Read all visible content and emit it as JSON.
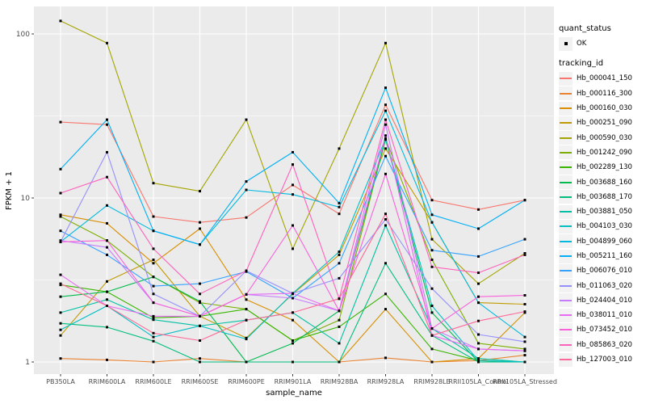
{
  "chart_data": {
    "type": "line",
    "title": "",
    "xlabel": "sample_name",
    "ylabel": "FPKM + 1",
    "y_scale": "log10",
    "ylim": [
      1,
      130
    ],
    "y_ticks": [
      1,
      10,
      100
    ],
    "y_minor_ticks": [
      3.162,
      31.623
    ],
    "grid": true,
    "panel_bg": "#EBEBEB",
    "grid_color": "#FFFFFF",
    "tick_label_color": "#4D4D4D",
    "point_color": "#000000",
    "point_shape": "filled-square",
    "legend_position": "right",
    "categories": [
      "PB350LA",
      "RRIM600LA",
      "RRIM600LE",
      "RRIM600SE",
      "RRIM600PE",
      "RRIM901LA",
      "RRIM928BA",
      "RRIM928LA",
      "RRIM928LE",
      "RRII105LA_Control",
      "RRII105LA_Stressed"
    ],
    "legend": {
      "quant_status_title": "quant_status",
      "ok_label": "OK",
      "tracking_title": "tracking_id"
    },
    "series": [
      {
        "tracking_id": "Hb_000041_150",
        "quant_status": "OK",
        "color": "#F8766D",
        "values": [
          29,
          28,
          7.7,
          7.1,
          7.6,
          12,
          8,
          37,
          9.7,
          8.5,
          9.7
        ]
      },
      {
        "tracking_id": "Hb_000116_300",
        "quant_status": "OK",
        "color": "#EA8331",
        "values": [
          1.05,
          1.03,
          1.0,
          1.05,
          1.0,
          1.0,
          1.0,
          1.06,
          1.0,
          1.02,
          1.1
        ]
      },
      {
        "tracking_id": "Hb_000160_030",
        "quant_status": "OK",
        "color": "#D89000",
        "values": [
          7.9,
          7.0,
          4.0,
          6.5,
          2.4,
          1.8,
          1.0,
          2.1,
          1.0,
          1.05,
          2.0
        ]
      },
      {
        "tracking_id": "Hb_000251_090",
        "quant_status": "OK",
        "color": "#C09B00",
        "values": [
          1.45,
          3.1,
          4.2,
          1.9,
          1.4,
          2.6,
          4.5,
          20,
          7.1,
          2.3,
          2.25
        ]
      },
      {
        "tracking_id": "Hb_000590_030",
        "quant_status": "OK",
        "color": "#A3A500",
        "values": [
          120,
          88,
          12.3,
          11,
          30,
          4.9,
          20,
          88,
          5.6,
          3.0,
          4.6
        ]
      },
      {
        "tracking_id": "Hb_001242_090",
        "quant_status": "OK",
        "color": "#7CAE00",
        "values": [
          7.7,
          5.5,
          3.3,
          2.3,
          2.1,
          1.35,
          1.8,
          23,
          4.2,
          1.3,
          1.2
        ]
      },
      {
        "tracking_id": "Hb_002289_130",
        "quant_status": "OK",
        "color": "#39B600",
        "values": [
          2.95,
          2.68,
          1.86,
          1.9,
          2.1,
          1.35,
          1.64,
          2.6,
          1.2,
          1.02,
          1.0
        ]
      },
      {
        "tracking_id": "Hb_003688_160",
        "quant_status": "OK",
        "color": "#00BB4E",
        "values": [
          2.5,
          2.68,
          3.3,
          2.34,
          1.0,
          1.3,
          2.05,
          22.7,
          2.0,
          1.0,
          1.0
        ]
      },
      {
        "tracking_id": "Hb_003688_170",
        "quant_status": "OK",
        "color": "#00BF7D",
        "values": [
          1.72,
          1.63,
          1.34,
          1.0,
          1.0,
          1.0,
          1.0,
          4.0,
          1.45,
          1.0,
          1.0
        ]
      },
      {
        "tracking_id": "Hb_003881_050",
        "quant_status": "OK",
        "color": "#00C1A3",
        "values": [
          2.0,
          2.4,
          1.81,
          1.66,
          1.8,
          2.0,
          1.3,
          6.8,
          1.6,
          1.05,
          1.0
        ]
      },
      {
        "tracking_id": "Hb_004103_030",
        "quant_status": "OK",
        "color": "#00BFC4",
        "values": [
          1.57,
          2.2,
          1.42,
          1.66,
          1.38,
          2.62,
          4.7,
          23,
          2.2,
          1.02,
          1.0
        ]
      },
      {
        "tracking_id": "Hb_004899_060",
        "quant_status": "OK",
        "color": "#00BAE0",
        "values": [
          5.4,
          9.0,
          6.3,
          5.2,
          11.2,
          10.5,
          8.8,
          34,
          7.1,
          2.3,
          1.42
        ]
      },
      {
        "tracking_id": "Hb_005211_160",
        "quant_status": "OK",
        "color": "#00B0F6",
        "values": [
          15,
          30,
          6.3,
          5.2,
          12.6,
          19,
          9.3,
          47,
          7.9,
          6.5,
          9.7
        ]
      },
      {
        "tracking_id": "Hb_006076_010",
        "quant_status": "OK",
        "color": "#35A2FF",
        "values": [
          6.3,
          4.5,
          2.9,
          3.0,
          3.56,
          2.45,
          4.0,
          18,
          4.8,
          4.4,
          5.6
        ]
      },
      {
        "tracking_id": "Hb_011063_020",
        "quant_status": "OK",
        "color": "#9590FF",
        "values": [
          5.4,
          19,
          2.6,
          1.9,
          3.6,
          2.62,
          3.24,
          7.4,
          2.8,
          1.47,
          1.33
        ]
      },
      {
        "tracking_id": "Hb_024404_010",
        "quant_status": "OK",
        "color": "#C77CFF",
        "values": [
          5.5,
          5.0,
          2.3,
          1.9,
          2.58,
          2.45,
          2.05,
          28,
          1.6,
          1.2,
          1.17
        ]
      },
      {
        "tracking_id": "Hb_038011_010",
        "quant_status": "OK",
        "color": "#E76BF3",
        "values": [
          3.4,
          2.2,
          1.9,
          1.9,
          2.58,
          2.62,
          2.05,
          24,
          1.45,
          1.2,
          1.17
        ]
      },
      {
        "tracking_id": "Hb_073452_010",
        "quant_status": "OK",
        "color": "#FA62DB",
        "values": [
          5.4,
          5.5,
          2.3,
          1.9,
          2.58,
          6.8,
          2.05,
          14,
          1.6,
          2.5,
          2.55
        ]
      },
      {
        "tracking_id": "Hb_085863_020",
        "quant_status": "OK",
        "color": "#FF62BC",
        "values": [
          10.7,
          13.4,
          4.9,
          2.6,
          3.6,
          16,
          2.43,
          30,
          3.8,
          3.5,
          4.5
        ]
      },
      {
        "tracking_id": "Hb_127003_010",
        "quant_status": "OK",
        "color": "#FF6A98",
        "values": [
          3.0,
          2.2,
          1.5,
          1.35,
          1.8,
          2.0,
          2.43,
          8.0,
          1.45,
          1.78,
          2.03
        ]
      }
    ]
  }
}
